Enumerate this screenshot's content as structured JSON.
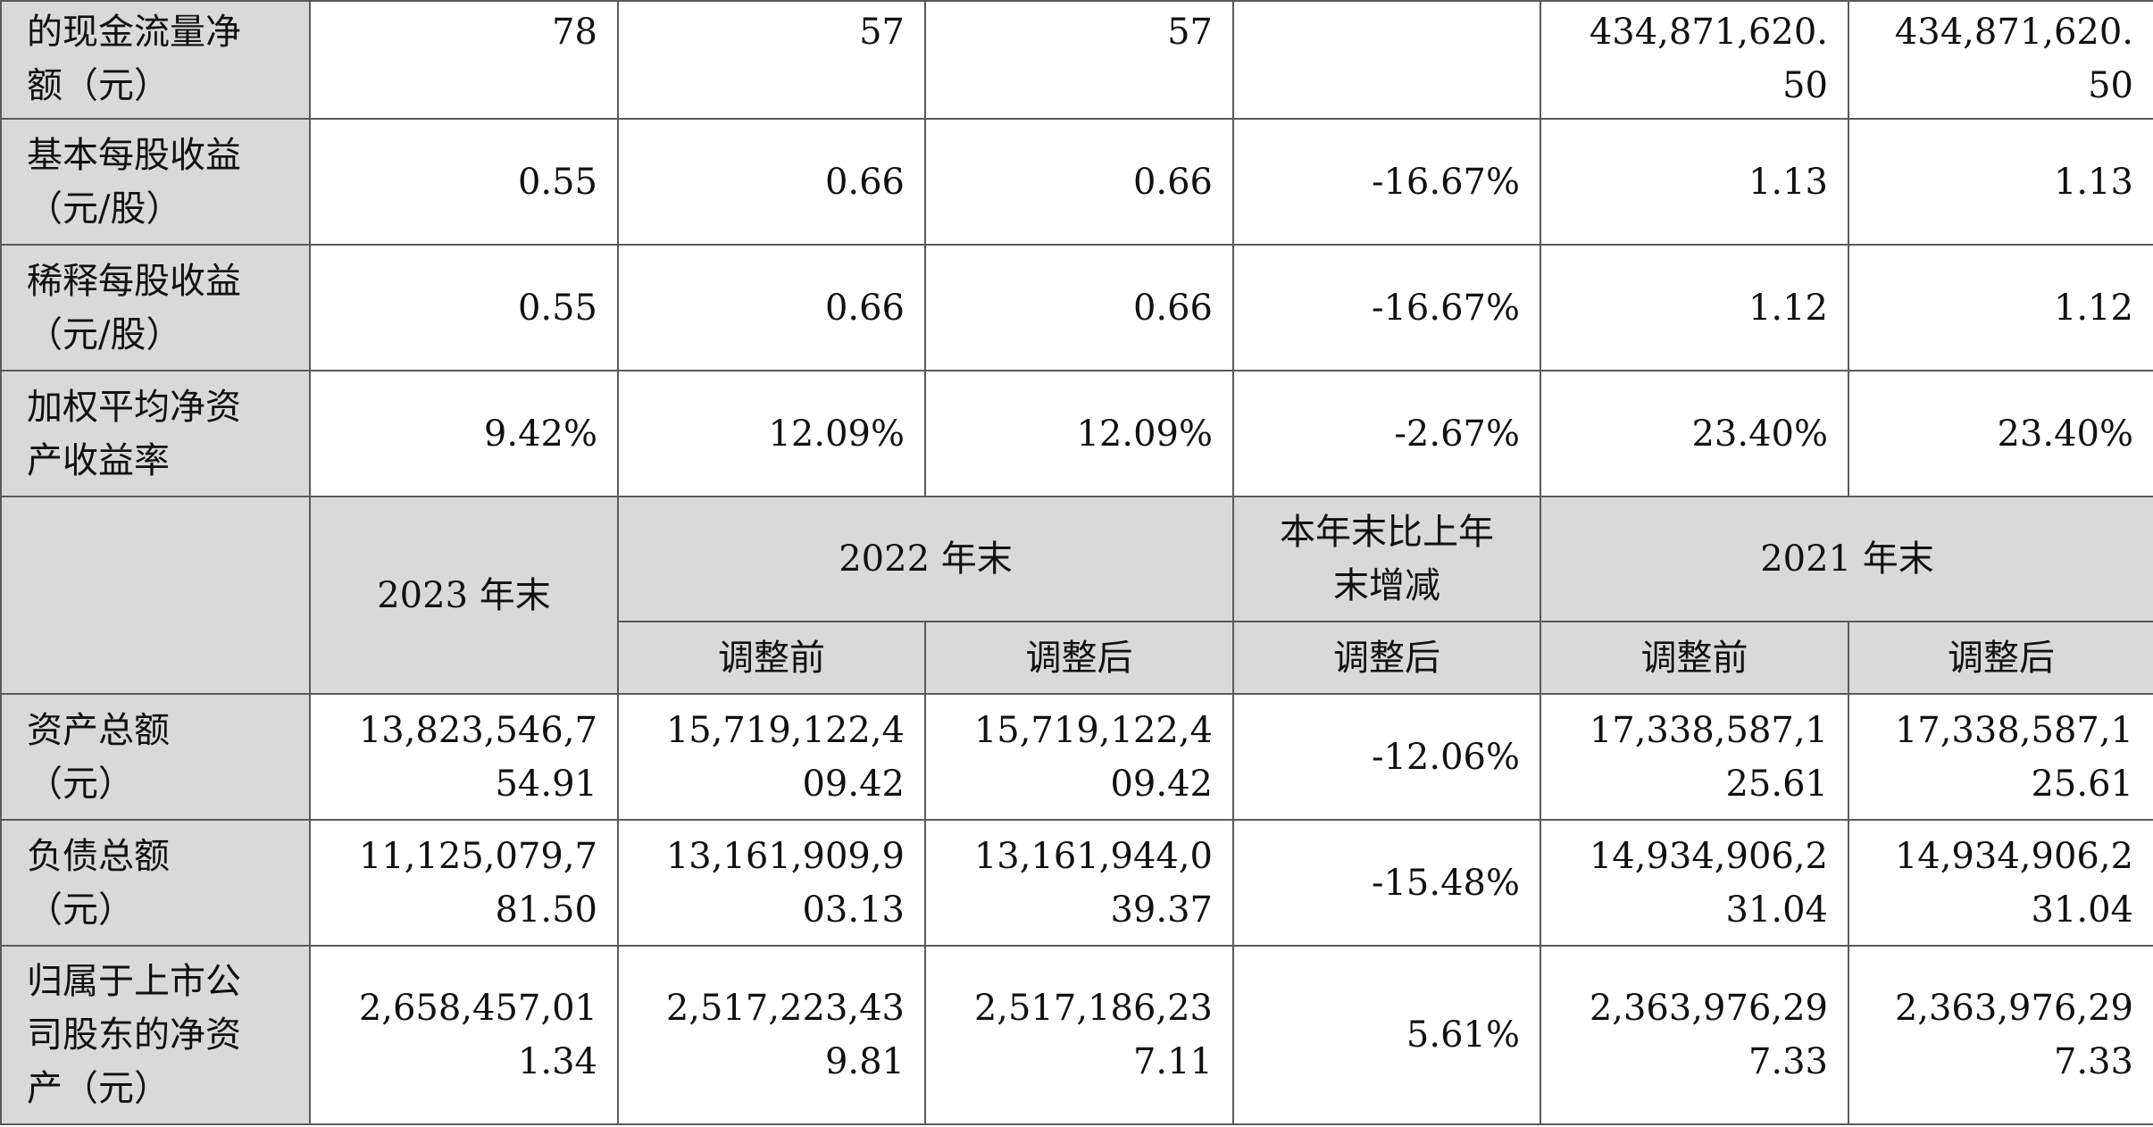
{
  "rows_top": [
    {
      "label": "的现金流量净\n额（元）",
      "values": [
        "78",
        "57",
        "57",
        "",
        "434,871,620.\n50",
        "434,871,620.\n50"
      ]
    },
    {
      "label": "基本每股收益\n（元/股）",
      "values": [
        "0.55",
        "0.66",
        "0.66",
        "-16.67%",
        "1.13",
        "1.13"
      ]
    },
    {
      "label": "稀释每股收益\n（元/股）",
      "values": [
        "0.55",
        "0.66",
        "0.66",
        "-16.67%",
        "1.12",
        "1.12"
      ]
    },
    {
      "label": "加权平均净资\n产收益率",
      "values": [
        "9.42%",
        "12.09%",
        "12.09%",
        "-2.67%",
        "23.40%",
        "23.40%"
      ]
    }
  ],
  "header": {
    "col_2023": "2023 年末",
    "col_2022": "2022 年末",
    "col_change": "本年末比上年\n末增减",
    "col_2021": "2021 年末",
    "sub": [
      "调整前",
      "调整后",
      "调整后",
      "调整前",
      "调整后"
    ]
  },
  "rows_bottom": [
    {
      "label": "资产总额\n（元）",
      "values": [
        "13,823,546,7\n54.91",
        "15,719,122,4\n09.42",
        "15,719,122,4\n09.42",
        "-12.06%",
        "17,338,587,1\n25.61",
        "17,338,587,1\n25.61"
      ]
    },
    {
      "label": "负债总额\n（元）",
      "values": [
        "11,125,079,7\n81.50",
        "13,161,909,9\n03.13",
        "13,161,944,0\n39.37",
        "-15.48%",
        "14,934,906,2\n31.04",
        "14,934,906,2\n31.04"
      ]
    },
    {
      "label": "归属于上市公\n司股东的净资\n产（元）",
      "values": [
        "2,658,457,01\n1.34",
        "2,517,223,43\n9.81",
        "2,517,186,23\n7.11",
        "5.61%",
        "2,363,976,29\n7.33",
        "2,363,976,29\n7.33"
      ]
    }
  ]
}
